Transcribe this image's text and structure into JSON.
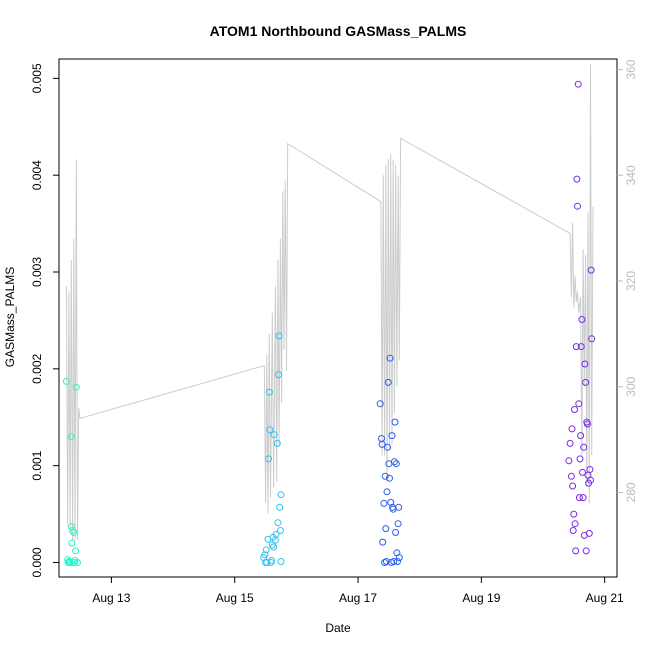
{
  "chart_data": {
    "type": "scatter",
    "title": "ATOM1 Northbound GASMass_PALMS",
    "xlabel": "Date",
    "ylabel": "GASMass_PALMS",
    "y2label": "",
    "xlim": [
      12.15,
      21.2
    ],
    "ylim": [
      -0.00015,
      0.0052
    ],
    "y2lim": [
      264,
      362
    ],
    "xticks": [
      {
        "v": 13,
        "label": "Aug 13"
      },
      {
        "v": 15,
        "label": "Aug 15"
      },
      {
        "v": 17,
        "label": "Aug 17"
      },
      {
        "v": 19,
        "label": "Aug 19"
      },
      {
        "v": 21,
        "label": "Aug 21"
      }
    ],
    "yticks": [
      {
        "v": 0,
        "label": "0.000"
      },
      {
        "v": 0.001,
        "label": "0.001"
      },
      {
        "v": 0.002,
        "label": "0.002"
      },
      {
        "v": 0.003,
        "label": "0.003"
      },
      {
        "v": 0.004,
        "label": "0.004"
      },
      {
        "v": 0.005,
        "label": "0.005"
      }
    ],
    "y2ticks": [
      {
        "v": 280,
        "label": "280"
      },
      {
        "v": 300,
        "label": "300"
      },
      {
        "v": 320,
        "label": "320"
      },
      {
        "v": 340,
        "label": "340"
      },
      {
        "v": 360,
        "label": "360"
      }
    ],
    "line_color": "#cccccc",
    "line": [
      [
        12.27,
        319
      ],
      [
        12.29,
        274
      ],
      [
        12.31,
        318
      ],
      [
        12.33,
        273
      ],
      [
        12.35,
        324
      ],
      [
        12.37,
        271
      ],
      [
        12.39,
        328
      ],
      [
        12.41,
        271
      ],
      [
        12.43,
        343
      ],
      [
        12.45,
        271
      ],
      [
        12.47,
        296
      ],
      [
        12.49,
        294
      ],
      [
        15.48,
        304
      ],
      [
        15.5,
        278
      ],
      [
        15.52,
        306
      ],
      [
        15.54,
        276
      ],
      [
        15.56,
        310
      ],
      [
        15.58,
        279
      ],
      [
        15.61,
        314
      ],
      [
        15.63,
        281
      ],
      [
        15.66,
        319
      ],
      [
        15.68,
        282
      ],
      [
        15.7,
        324
      ],
      [
        15.72,
        289
      ],
      [
        15.74,
        328
      ],
      [
        15.76,
        297
      ],
      [
        15.78,
        337
      ],
      [
        15.8,
        307
      ],
      [
        15.82,
        339
      ],
      [
        15.84,
        303
      ],
      [
        15.86,
        346
      ],
      [
        17.37,
        335
      ],
      [
        17.39,
        287
      ],
      [
        17.41,
        340
      ],
      [
        17.43,
        287
      ],
      [
        17.45,
        342
      ],
      [
        17.47,
        282
      ],
      [
        17.49,
        343
      ],
      [
        17.51,
        288
      ],
      [
        17.53,
        344
      ],
      [
        17.55,
        289
      ],
      [
        17.57,
        343
      ],
      [
        17.59,
        295
      ],
      [
        17.61,
        342
      ],
      [
        17.63,
        300
      ],
      [
        17.65,
        340
      ],
      [
        17.67,
        305
      ],
      [
        17.69,
        347
      ],
      [
        20.44,
        329
      ],
      [
        20.46,
        317
      ],
      [
        20.48,
        331
      ],
      [
        20.5,
        315
      ],
      [
        20.52,
        321
      ],
      [
        20.54,
        316
      ],
      [
        20.56,
        318
      ],
      [
        20.58,
        314
      ],
      [
        20.61,
        317
      ],
      [
        20.63,
        287
      ],
      [
        20.65,
        326
      ],
      [
        20.67,
        300
      ],
      [
        20.69,
        325
      ],
      [
        20.71,
        281
      ],
      [
        20.73,
        333
      ],
      [
        20.75,
        278
      ],
      [
        20.77,
        361
      ],
      [
        20.79,
        287
      ],
      [
        20.81,
        334
      ]
    ],
    "series": [
      {
        "color": "#2af5c8",
        "points": [
          [
            12.27,
            0.00187
          ],
          [
            12.3,
            0.0
          ],
          [
            12.29,
            3e-05
          ],
          [
            12.31,
            1e-05
          ],
          [
            12.33,
            0.0
          ],
          [
            12.35,
            0.00037
          ],
          [
            12.37,
            0.00033
          ],
          [
            12.39,
            0.00031
          ],
          [
            12.41,
            2e-05
          ],
          [
            12.43,
            0.00181
          ],
          [
            12.35,
            0.0013
          ],
          [
            12.36,
            0.0002
          ],
          [
            12.38,
            0.0
          ],
          [
            12.42,
            0.00012
          ],
          [
            12.45,
            0.0
          ],
          [
            12.32,
            1e-05
          ],
          [
            12.4,
            0.0
          ]
        ]
      },
      {
        "color": "#30c4f0",
        "points": [
          [
            15.47,
            5e-05
          ],
          [
            15.49,
            8e-05
          ],
          [
            15.5,
            0.0
          ],
          [
            15.51,
            0.00013
          ],
          [
            15.52,
            0.0
          ],
          [
            15.54,
            0.00024
          ],
          [
            15.55,
            0.00107
          ],
          [
            15.56,
            0.00176
          ],
          [
            15.57,
            0.00137
          ],
          [
            15.59,
            0.0
          ],
          [
            15.6,
            2e-05
          ],
          [
            15.61,
            0.00018
          ],
          [
            15.62,
            0.00026
          ],
          [
            15.63,
            0.00016
          ],
          [
            15.64,
            0.00132
          ],
          [
            15.66,
            0.00023
          ],
          [
            15.67,
            0.00029
          ],
          [
            15.69,
            0.00123
          ],
          [
            15.7,
            0.00041
          ],
          [
            15.71,
            0.00194
          ],
          [
            15.72,
            0.00234
          ],
          [
            15.73,
            0.00057
          ],
          [
            15.74,
            0.00033
          ],
          [
            15.75,
            1e-05
          ],
          [
            15.75,
            0.0007
          ]
        ]
      },
      {
        "color": "#2a5ff0",
        "points": [
          [
            17.36,
            0.00164
          ],
          [
            17.38,
            0.00128
          ],
          [
            17.39,
            0.00122
          ],
          [
            17.4,
            0.00021
          ],
          [
            17.42,
            0.00061
          ],
          [
            17.43,
            0.0
          ],
          [
            17.44,
            0.00089
          ],
          [
            17.45,
            0.00035
          ],
          [
            17.46,
            1e-05
          ],
          [
            17.47,
            0.00073
          ],
          [
            17.48,
            0.00119
          ],
          [
            17.49,
            0.00186
          ],
          [
            17.5,
            0.00102
          ],
          [
            17.51,
            0.00087
          ],
          [
            17.52,
            0.00211
          ],
          [
            17.53,
            0.00062
          ],
          [
            17.54,
            0.0
          ],
          [
            17.55,
            0.00131
          ],
          [
            17.56,
            0.00057
          ],
          [
            17.57,
            0.00055
          ],
          [
            17.58,
            1e-05
          ],
          [
            17.59,
            0.00104
          ],
          [
            17.6,
            0.00145
          ],
          [
            17.61,
            0.00031
          ],
          [
            17.62,
            0.00102
          ],
          [
            17.63,
            0.0001
          ],
          [
            17.64,
            1e-05
          ],
          [
            17.65,
            0.0004
          ],
          [
            17.66,
            0.00057
          ],
          [
            17.67,
            5e-05
          ]
        ]
      },
      {
        "color": "#7a2ee8",
        "points": [
          [
            20.42,
            0.00105
          ],
          [
            20.44,
            0.00123
          ],
          [
            20.46,
            0.00089
          ],
          [
            20.47,
            0.00138
          ],
          [
            20.48,
            0.00079
          ],
          [
            20.49,
            0.00033
          ],
          [
            20.5,
            0.0005
          ],
          [
            20.51,
            0.00158
          ],
          [
            20.52,
            0.0004
          ],
          [
            20.53,
            0.00012
          ],
          [
            20.54,
            0.00223
          ],
          [
            20.55,
            0.00396
          ],
          [
            20.56,
            0.00368
          ],
          [
            20.57,
            0.00494
          ],
          [
            20.58,
            0.00164
          ],
          [
            20.59,
            0.00067
          ],
          [
            20.6,
            0.00107
          ],
          [
            20.61,
            0.00131
          ],
          [
            20.62,
            0.00223
          ],
          [
            20.63,
            0.00251
          ],
          [
            20.64,
            0.00093
          ],
          [
            20.65,
            0.00067
          ],
          [
            20.66,
            0.00119
          ],
          [
            20.67,
            0.00028
          ],
          [
            20.68,
            0.00205
          ],
          [
            20.69,
            0.00186
          ],
          [
            20.7,
            0.00012
          ],
          [
            20.71,
            0.00145
          ],
          [
            20.72,
            0.00143
          ],
          [
            20.73,
            0.0009
          ],
          [
            20.74,
            0.00082
          ],
          [
            20.75,
            0.0003
          ],
          [
            20.76,
            0.00096
          ],
          [
            20.77,
            0.00085
          ],
          [
            20.78,
            0.00302
          ],
          [
            20.79,
            0.00231
          ]
        ]
      }
    ]
  }
}
